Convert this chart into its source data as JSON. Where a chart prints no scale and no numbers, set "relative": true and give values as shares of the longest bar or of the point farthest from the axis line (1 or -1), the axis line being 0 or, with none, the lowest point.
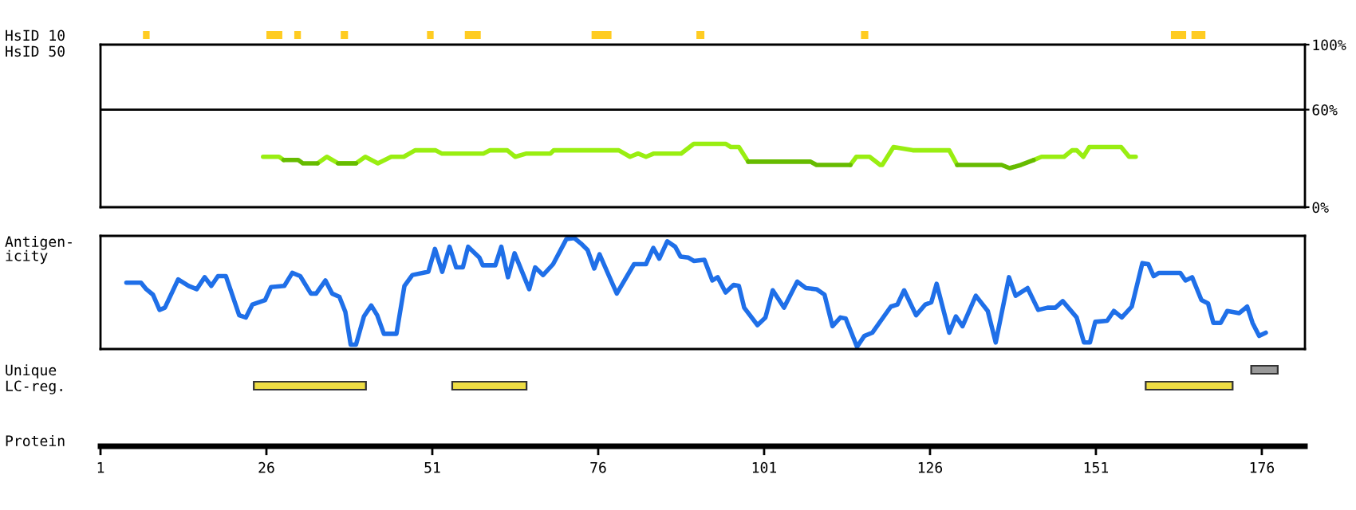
{
  "chart_data": [
    {
      "type": "bar",
      "orientation": "horizontal",
      "categories": [
        "HsID 10",
        "HsID 50"
      ],
      "xlim": [
        1,
        182.5
      ],
      "tick_labels": "y",
      "series": [
        {
          "color": "#ffcc22",
          "base": [
            7.4,
            null
          ],
          "values": [
            1.0,
            null
          ]
        },
        {
          "color": "#ffcc22",
          "base": [
            26.0,
            null
          ],
          "values": [
            2.4,
            null
          ]
        },
        {
          "color": "#ffcc22",
          "base": [
            30.2,
            null
          ],
          "values": [
            1.0,
            null
          ]
        },
        {
          "color": "#ffcc22",
          "base": [
            37.2,
            null
          ],
          "values": [
            1.1,
            null
          ]
        },
        {
          "color": "#ffcc22",
          "base": [
            50.2,
            null
          ],
          "values": [
            1.0,
            null
          ]
        },
        {
          "color": "#ffcc22",
          "base": [
            55.9,
            null
          ],
          "values": [
            2.4,
            null
          ]
        },
        {
          "color": "#ffcc22",
          "base": [
            75.0,
            null
          ],
          "values": [
            3.0,
            null
          ]
        },
        {
          "color": "#ffcc22",
          "base": [
            90.8,
            null
          ],
          "values": [
            1.2,
            null
          ]
        },
        {
          "color": "#ffcc22",
          "base": [
            115.6,
            null
          ],
          "values": [
            1.1,
            null
          ]
        },
        {
          "color": "#ffcc22",
          "base": [
            162.3,
            null
          ],
          "values": [
            2.3,
            null
          ]
        },
        {
          "color": "#ffcc22",
          "base": [
            165.4,
            null
          ],
          "values": [
            2.1,
            null
          ]
        }
      ]
    },
    {
      "type": "line",
      "xlim": [
        1,
        182.5
      ],
      "y2lim": [
        0,
        100
      ],
      "y2ticks": [
        {
          "value": 0,
          "label": "0%"
        },
        {
          "value": 60,
          "label": "60%"
        },
        {
          "value": 100,
          "label": "100%"
        }
      ],
      "tick_labels": "y",
      "ref_lines": [
        {
          "axis": "y2",
          "value": 60,
          "color": "#000000"
        }
      ],
      "x": [
        25.5,
        27.9,
        28.6,
        30.8,
        31.5,
        33.7,
        35.1,
        36.8,
        39.5,
        40.9,
        42.8,
        44.8,
        46.7,
        48.4,
        51.5,
        52.4,
        58.7,
        59.7,
        62.3,
        63.5,
        65.2,
        68.8,
        69.3,
        79.1,
        80.8,
        82.0,
        83.2,
        84.4,
        88.5,
        90.4,
        95.2,
        96.0,
        97.2,
        98.6,
        108.0,
        108.9,
        114.0,
        114.9,
        116.9,
        118.5,
        118.8,
        120.5,
        123.4,
        128.9,
        130.1,
        136.8,
        138.0,
        139.7,
        141.6,
        142.8,
        146.2,
        147.4,
        148.1,
        149.1,
        150.0,
        154.8,
        156.0,
        157.0
      ],
      "series": [
        {
          "axis": "y2",
          "color": "#99ee11",
          "values": [
            31,
            31,
            29,
            null,
            null,
            27,
            31,
            27,
            27,
            31,
            27,
            31,
            31,
            35,
            35,
            33,
            33,
            35,
            35,
            31,
            33,
            33,
            35,
            35,
            31,
            33,
            31,
            33,
            33,
            39,
            39,
            37,
            37,
            28,
            null,
            null,
            26,
            31,
            31,
            26,
            26,
            37,
            35,
            35,
            26,
            null,
            null,
            null,
            29,
            31,
            31,
            35,
            35,
            31,
            37,
            37,
            31,
            31
          ]
        },
        {
          "axis": "y2",
          "color": "#66bb00",
          "values": [
            null,
            null,
            29,
            29,
            27,
            27,
            null,
            27,
            27,
            null,
            null,
            null,
            null,
            null,
            null,
            null,
            null,
            null,
            null,
            null,
            null,
            null,
            null,
            null,
            null,
            null,
            null,
            null,
            null,
            null,
            null,
            null,
            null,
            28,
            28,
            26,
            26,
            null,
            null,
            null,
            null,
            null,
            null,
            null,
            26,
            26,
            24,
            26,
            29,
            null,
            null,
            null,
            null,
            null,
            null,
            null,
            null,
            null
          ]
        }
      ]
    },
    {
      "type": "line",
      "relative": true,
      "ylabel": "Antigen-\nicity",
      "xlim": [
        1,
        182.5
      ],
      "tick_labels": false,
      "series": [
        {
          "color": "#1f6fe8",
          "x": [
            4.9,
            7.1,
            7.9,
            8.9,
            9.9,
            10.7,
            12.7,
            14.3,
            15.5,
            16.7,
            17.7,
            18.7,
            19.9,
            21.9,
            22.9,
            23.9,
            25.8,
            26.7,
            28.7,
            29.9,
            31.1,
            32.7,
            33.5,
            34.9,
            35.9,
            37.0,
            37.9,
            38.7,
            39.5,
            40.7,
            41.8,
            42.7,
            43.7,
            45.6,
            46.8,
            48.0,
            50.4,
            51.4,
            52.5,
            53.6,
            54.6,
            55.6,
            56.4,
            58.1,
            58.6,
            60.5,
            61.4,
            62.4,
            63.4,
            65.6,
            66.5,
            67.7,
            69.2,
            71.2,
            72.4,
            73.4,
            74.4,
            75.4,
            76.2,
            78.8,
            81.4,
            83.2,
            84.3,
            85.2,
            86.4,
            87.6,
            88.4,
            89.6,
            90.4,
            92.0,
            93.2,
            94.0,
            95.2,
            96.4,
            97.2,
            98.0,
            100.0,
            101.2,
            102.3,
            104.0,
            106.0,
            107.3,
            108.9,
            110.1,
            111.3,
            112.5,
            113.3,
            115.0,
            116.1,
            117.3,
            120.1,
            121.1,
            122.1,
            123.9,
            125.3,
            126.2,
            127.0,
            128.9,
            129.9,
            130.9,
            132.9,
            134.7,
            135.9,
            137.9,
            138.9,
            140.7,
            142.3,
            143.7,
            144.9,
            146.0,
            148.1,
            149.2,
            150.1,
            150.9,
            152.7,
            153.7,
            154.9,
            156.4,
            158.0,
            158.9,
            159.7,
            160.5,
            163.7,
            164.5,
            165.5,
            166.9,
            167.9,
            168.7,
            169.8,
            170.8,
            172.6,
            173.8,
            174.6,
            175.6,
            176.6
          ],
          "values": [
            0.59,
            0.59,
            0.53,
            0.48,
            0.34,
            0.36,
            0.62,
            0.56,
            0.53,
            0.64,
            0.56,
            0.65,
            0.65,
            0.29,
            0.27,
            0.39,
            0.43,
            0.55,
            0.56,
            0.68,
            0.65,
            0.49,
            0.49,
            0.61,
            0.49,
            0.46,
            0.32,
            0.02,
            0.02,
            0.28,
            0.38,
            0.29,
            0.12,
            0.12,
            0.56,
            0.66,
            0.69,
            0.9,
            0.69,
            0.92,
            0.73,
            0.73,
            0.92,
            0.82,
            0.75,
            0.75,
            0.92,
            0.64,
            0.86,
            0.53,
            0.73,
            0.66,
            0.76,
            0.99,
            1.0,
            0.95,
            0.89,
            0.72,
            0.85,
            0.49,
            0.76,
            0.76,
            0.91,
            0.81,
            0.97,
            0.92,
            0.83,
            0.82,
            0.79,
            0.8,
            0.61,
            0.64,
            0.5,
            0.57,
            0.56,
            0.36,
            0.2,
            0.27,
            0.52,
            0.36,
            0.6,
            0.54,
            0.53,
            0.48,
            0.19,
            0.27,
            0.26,
            0,
            0.1,
            0.13,
            0.37,
            0.39,
            0.52,
            0.29,
            0.39,
            0.41,
            0.58,
            0.13,
            0.28,
            0.19,
            0.47,
            0.33,
            0.04,
            0.64,
            0.47,
            0.54,
            0.34,
            0.36,
            0.36,
            0.42,
            0.27,
            0.04,
            0.04,
            0.23,
            0.24,
            0.33,
            0.27,
            0.37,
            0.77,
            0.76,
            0.65,
            0.68,
            0.68,
            0.61,
            0.64,
            0.43,
            0.4,
            0.22,
            0.22,
            0.33,
            0.31,
            0.37,
            0.22,
            0.1,
            0.13
          ]
        }
      ]
    },
    {
      "type": "bar",
      "orientation": "horizontal",
      "categories": [
        "Unique",
        "LC-reg."
      ],
      "xlabel": "Protein",
      "xlim": [
        1,
        182.5
      ],
      "xticks": [
        1,
        26,
        51,
        76,
        101,
        126,
        151,
        176
      ],
      "series": [
        {
          "color": "#999999",
          "base": [
            174.4,
            null
          ],
          "values": [
            4.0,
            null
          ]
        },
        {
          "color": "#eedd44",
          "base": [
            null,
            24.1
          ],
          "values": [
            null,
            16.9
          ]
        },
        {
          "color": "#eedd44",
          "base": [
            null,
            54.0
          ],
          "values": [
            null,
            11.2
          ]
        },
        {
          "color": "#eedd44",
          "base": [
            null,
            158.5
          ],
          "values": [
            null,
            13.1
          ]
        }
      ]
    }
  ]
}
